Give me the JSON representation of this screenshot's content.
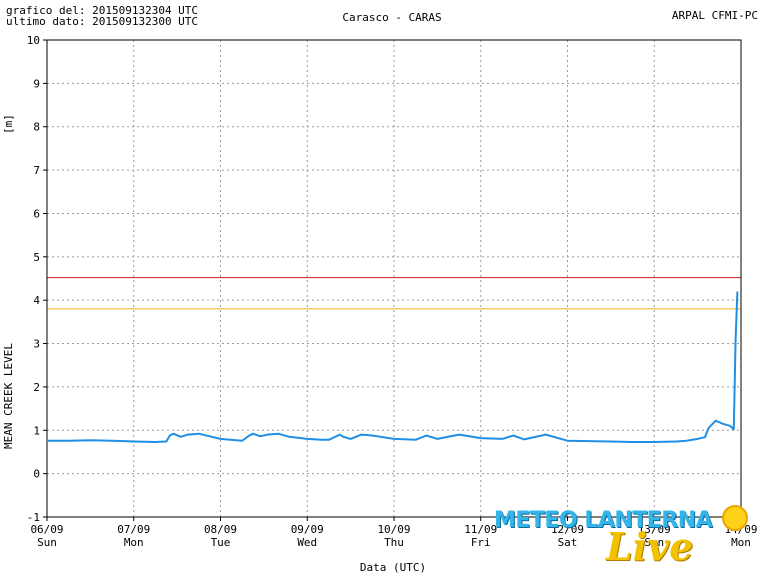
{
  "header": {
    "grafico_del": "grafico del: 201509132304 UTC",
    "ultimo_dato": "ultimo dato: 201509132300 UTC",
    "station": "Carasco - CARAS",
    "source": "ARPAL CFMI-PC"
  },
  "logo": {
    "main": "METEO LANTERNA",
    "sub": "Live"
  },
  "colors": {
    "series": "#1f8fe6",
    "threshold_red": "#cc2222",
    "threshold_orange": "#f0b020",
    "grid": "#9a9a9a"
  },
  "chart_data": {
    "type": "line",
    "xlabel": "Data (UTC)",
    "ylabel": "MEAN CREEK LEVEL",
    "yunit": "[m]",
    "ylim": [
      -1,
      10
    ],
    "yticks": [
      -1,
      0,
      1,
      2,
      3,
      4,
      5,
      6,
      7,
      8,
      9,
      10
    ],
    "xlim": [
      "2015-09-06T00:00",
      "2015-09-14T00:00"
    ],
    "xticks": [
      {
        "date": "06/09",
        "day": "Sun"
      },
      {
        "date": "07/09",
        "day": "Mon"
      },
      {
        "date": "08/09",
        "day": "Tue"
      },
      {
        "date": "09/09",
        "day": "Wed"
      },
      {
        "date": "10/09",
        "day": "Thu"
      },
      {
        "date": "11/09",
        "day": "Fri"
      },
      {
        "date": "12/09",
        "day": "Sat"
      },
      {
        "date": "13/09",
        "day": "Sun"
      },
      {
        "date": "14/09",
        "day": "Mon"
      }
    ],
    "thresholds": [
      {
        "value": 4.52,
        "color": "#cc2222"
      },
      {
        "value": 3.8,
        "color": "#f0b020"
      }
    ],
    "grid": true,
    "series": [
      {
        "x": [
          "2015-09-06T00:00",
          "2015-09-06T06:00",
          "2015-09-06T12:00",
          "2015-09-06T18:00",
          "2015-09-07T00:00",
          "2015-09-07T06:00",
          "2015-09-07T09:00",
          "2015-09-07T10:00",
          "2015-09-07T11:00",
          "2015-09-07T13:00",
          "2015-09-07T15:00",
          "2015-09-07T18:00",
          "2015-09-07T21:00",
          "2015-09-08T00:00",
          "2015-09-08T06:00",
          "2015-09-08T08:00",
          "2015-09-08T09:00",
          "2015-09-08T11:00",
          "2015-09-08T13:00",
          "2015-09-08T16:00",
          "2015-09-08T19:00",
          "2015-09-09T00:00",
          "2015-09-09T04:00",
          "2015-09-09T06:00",
          "2015-09-09T09:00",
          "2015-09-09T10:00",
          "2015-09-09T12:00",
          "2015-09-09T15:00",
          "2015-09-09T18:00",
          "2015-09-10T00:00",
          "2015-09-10T06:00",
          "2015-09-10T09:00",
          "2015-09-10T12:00",
          "2015-09-10T18:00",
          "2015-09-11T00:00",
          "2015-09-11T06:00",
          "2015-09-11T09:00",
          "2015-09-11T12:00",
          "2015-09-11T18:00",
          "2015-09-12T00:00",
          "2015-09-12T06:00",
          "2015-09-12T12:00",
          "2015-09-12T18:00",
          "2015-09-13T00:00",
          "2015-09-13T06:00",
          "2015-09-13T09:00",
          "2015-09-13T12:00",
          "2015-09-13T14:00",
          "2015-09-13T15:00",
          "2015-09-13T17:00",
          "2015-09-13T19:00",
          "2015-09-13T21:00",
          "2015-09-13T21:30",
          "2015-09-13T21:45",
          "2015-09-13T22:00",
          "2015-09-13T22:30",
          "2015-09-13T23:00"
        ],
        "y": [
          0.76,
          0.76,
          0.77,
          0.76,
          0.74,
          0.73,
          0.74,
          0.88,
          0.92,
          0.85,
          0.9,
          0.92,
          0.86,
          0.8,
          0.76,
          0.88,
          0.92,
          0.86,
          0.9,
          0.92,
          0.85,
          0.8,
          0.78,
          0.78,
          0.9,
          0.85,
          0.8,
          0.9,
          0.88,
          0.8,
          0.78,
          0.88,
          0.8,
          0.9,
          0.82,
          0.8,
          0.88,
          0.79,
          0.9,
          0.76,
          0.75,
          0.74,
          0.73,
          0.73,
          0.74,
          0.76,
          0.8,
          0.84,
          1.05,
          1.22,
          1.15,
          1.1,
          1.06,
          1.03,
          1.03,
          3.1,
          4.2
        ]
      }
    ]
  }
}
